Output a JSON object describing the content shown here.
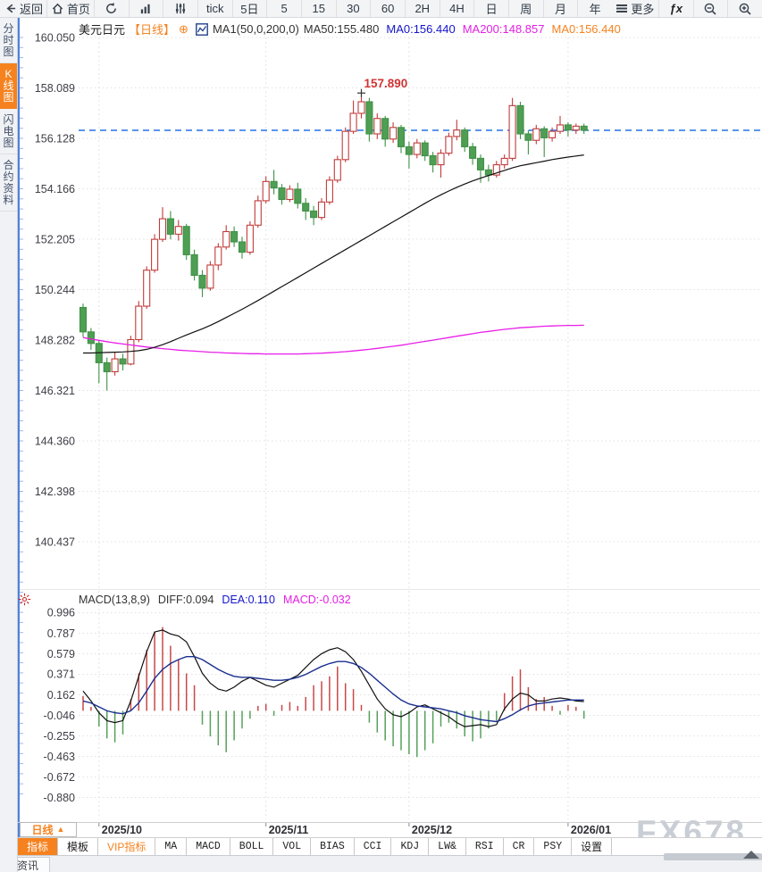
{
  "top_toolbar": {
    "back_label": "返回",
    "home_label": "首页",
    "periods": [
      "tick",
      "5日",
      "5",
      "15",
      "30",
      "60",
      "2H",
      "4H",
      "日",
      "周",
      "月",
      "年"
    ],
    "more_label": "更多",
    "fx_label": "ƒx"
  },
  "sidebar": {
    "items": [
      {
        "label": "分时图",
        "active": false
      },
      {
        "label": "K线图",
        "active": true
      },
      {
        "label": "闪电图",
        "active": false
      },
      {
        "label": "合约资料",
        "active": false
      }
    ]
  },
  "chart_header": {
    "symbol": "美元日元",
    "period": "【日线】",
    "add_icon": "⊕",
    "ma_settings": "MA1(50,0,200,0)",
    "ma50_label": "MA50:155.480",
    "ma0_blue_label": "MA0:156.440",
    "ma200_label": "MA200:148.857",
    "ma0_orange_label": "MA0:156.440"
  },
  "macd_header": {
    "title": "MACD(13,8,9)",
    "diff_label": "DIFF:0.094",
    "dea_label": "DEA:0.110",
    "macd_label": "MACD:-0.032"
  },
  "bottom": {
    "period_selector": "日线",
    "period_selector_arrow": "▲",
    "tabs": [
      {
        "label": "指标",
        "active": true,
        "mono": false,
        "vip": false
      },
      {
        "label": "模板",
        "active": false,
        "mono": false,
        "vip": false
      },
      {
        "label": "VIP指标",
        "active": false,
        "mono": false,
        "vip": true
      },
      {
        "label": "MA",
        "active": false,
        "mono": true,
        "vip": false
      },
      {
        "label": "MACD",
        "active": false,
        "mono": true,
        "vip": false
      },
      {
        "label": "BOLL",
        "active": false,
        "mono": true,
        "vip": false
      },
      {
        "label": "VOL",
        "active": false,
        "mono": true,
        "vip": false
      },
      {
        "label": "BIAS",
        "active": false,
        "mono": true,
        "vip": false
      },
      {
        "label": "CCI",
        "active": false,
        "mono": true,
        "vip": false
      },
      {
        "label": "KDJ",
        "active": false,
        "mono": true,
        "vip": false
      },
      {
        "label": "LW&",
        "active": false,
        "mono": true,
        "vip": false
      },
      {
        "label": "RSI",
        "active": false,
        "mono": true,
        "vip": false
      },
      {
        "label": "CR",
        "active": false,
        "mono": true,
        "vip": false
      },
      {
        "label": "PSY",
        "active": false,
        "mono": true,
        "vip": false
      },
      {
        "label": "设置",
        "active": false,
        "mono": false,
        "vip": false
      }
    ],
    "news_tab": "资讯",
    "watermark": "FX678"
  },
  "colors": {
    "up": "#c13b3b",
    "down": "#4e9e53",
    "down_stroke": "#3f9146",
    "hist_up": "#c84848",
    "hist_down": "#55a05a",
    "ma50": "#111111",
    "ma200": "#e81ee8",
    "diff": "#111111",
    "dea": "#1a2f8f",
    "accent": "#f5821f",
    "price_line": "#2474e8",
    "grid": "#e0e0e3",
    "axis_text": "#3d3d46",
    "annotation": "#cf3434",
    "axis_blue": "#4d82dd"
  },
  "chart_data": {
    "type": "candlestick",
    "title": "美元日元 日线 (USD/JPY daily with MA50/MA200 and MACD(13,8,9))",
    "price_axis_labels": [
      "160.050",
      "158.089",
      "156.128",
      "154.166",
      "152.205",
      "150.244",
      "148.282",
      "146.321",
      "144.360",
      "142.398",
      "140.437"
    ],
    "price_top_label_value": 160.05,
    "price_axis_step": 1.9613,
    "x_labels": [
      {
        "text": "2025/10",
        "candle_index": 2
      },
      {
        "text": "2025/11",
        "candle_index": 23
      },
      {
        "text": "2025/12",
        "candle_index": 41
      },
      {
        "text": "2026/01",
        "candle_index": 61
      }
    ],
    "current_price": 156.44,
    "peak_annotation": {
      "text": "157.890",
      "candle_index": 35,
      "price": 157.89
    },
    "candles": [
      [
        149.55,
        149.7,
        148.4,
        148.6
      ],
      [
        148.6,
        148.75,
        147.9,
        148.15
      ],
      [
        148.15,
        148.25,
        146.6,
        147.4
      ],
      [
        147.4,
        147.6,
        146.32,
        147.05
      ],
      [
        147.05,
        147.8,
        146.9,
        147.55
      ],
      [
        147.55,
        147.75,
        147.1,
        147.35
      ],
      [
        147.35,
        148.45,
        147.3,
        148.3
      ],
      [
        148.3,
        149.8,
        148.2,
        149.6
      ],
      [
        149.6,
        151.15,
        149.5,
        151.0
      ],
      [
        151.0,
        152.4,
        150.9,
        152.2
      ],
      [
        152.2,
        153.45,
        152.1,
        153.0
      ],
      [
        153.0,
        153.3,
        152.2,
        152.4
      ],
      [
        152.4,
        152.95,
        152.15,
        152.7
      ],
      [
        152.7,
        152.8,
        151.4,
        151.6
      ],
      [
        151.6,
        151.8,
        150.6,
        150.8
      ],
      [
        150.8,
        151.0,
        149.95,
        150.3
      ],
      [
        150.3,
        151.35,
        150.2,
        151.2
      ],
      [
        151.2,
        152.05,
        151.0,
        151.9
      ],
      [
        151.9,
        152.75,
        151.8,
        152.5
      ],
      [
        152.5,
        152.7,
        151.9,
        152.1
      ],
      [
        152.1,
        152.3,
        151.45,
        151.7
      ],
      [
        151.7,
        152.9,
        151.6,
        152.75
      ],
      [
        152.75,
        153.9,
        152.65,
        153.7
      ],
      [
        153.7,
        154.65,
        153.6,
        154.45
      ],
      [
        154.45,
        154.9,
        153.95,
        154.2
      ],
      [
        154.2,
        154.35,
        153.55,
        153.75
      ],
      [
        153.75,
        154.3,
        153.65,
        154.15
      ],
      [
        154.15,
        154.4,
        153.4,
        153.6
      ],
      [
        153.6,
        153.8,
        152.95,
        153.3
      ],
      [
        153.3,
        153.5,
        152.75,
        153.05
      ],
      [
        153.05,
        153.8,
        152.95,
        153.65
      ],
      [
        153.65,
        154.65,
        153.55,
        154.5
      ],
      [
        154.5,
        155.45,
        154.4,
        155.3
      ],
      [
        155.3,
        156.55,
        155.2,
        156.4
      ],
      [
        156.4,
        157.6,
        156.3,
        157.1
      ],
      [
        157.1,
        157.89,
        156.9,
        157.55
      ],
      [
        157.55,
        157.7,
        156.0,
        156.3
      ],
      [
        156.3,
        157.1,
        156.1,
        156.9
      ],
      [
        156.9,
        157.0,
        155.8,
        156.1
      ],
      [
        156.1,
        156.75,
        155.95,
        156.55
      ],
      [
        156.55,
        156.65,
        155.55,
        155.8
      ],
      [
        155.8,
        156.0,
        154.95,
        155.5
      ],
      [
        155.5,
        156.1,
        155.35,
        155.95
      ],
      [
        155.95,
        156.05,
        155.25,
        155.45
      ],
      [
        155.45,
        155.6,
        154.8,
        155.1
      ],
      [
        155.1,
        155.7,
        154.6,
        155.55
      ],
      [
        155.55,
        156.35,
        155.45,
        156.2
      ],
      [
        156.2,
        156.85,
        156.05,
        156.45
      ],
      [
        156.45,
        156.55,
        155.6,
        155.8
      ],
      [
        155.8,
        155.95,
        155.1,
        155.35
      ],
      [
        155.35,
        155.5,
        154.4,
        154.9
      ],
      [
        154.9,
        155.1,
        154.45,
        154.7
      ],
      [
        154.7,
        155.25,
        154.6,
        155.1
      ],
      [
        155.1,
        155.5,
        154.95,
        155.35
      ],
      [
        155.35,
        157.7,
        155.25,
        157.4
      ],
      [
        157.4,
        157.55,
        156.1,
        156.3
      ],
      [
        156.3,
        156.45,
        155.5,
        156.05
      ],
      [
        156.05,
        156.65,
        155.9,
        156.5
      ],
      [
        156.5,
        156.6,
        155.4,
        156.15
      ],
      [
        156.15,
        156.55,
        156.0,
        156.4
      ],
      [
        156.4,
        157.0,
        156.3,
        156.65
      ],
      [
        156.65,
        156.75,
        156.2,
        156.45
      ],
      [
        156.45,
        156.7,
        156.3,
        156.6
      ],
      [
        156.6,
        156.7,
        156.3,
        156.44
      ]
    ],
    "ma50": [
      147.78,
      147.78,
      147.79,
      147.8,
      147.81,
      147.82,
      147.84,
      147.87,
      147.92,
      148.0,
      148.1,
      148.22,
      148.35,
      148.48,
      148.6,
      148.72,
      148.85,
      149.0,
      149.16,
      149.32,
      149.48,
      149.65,
      149.82,
      150.0,
      150.18,
      150.36,
      150.54,
      150.72,
      150.9,
      151.08,
      151.26,
      151.44,
      151.62,
      151.8,
      151.98,
      152.16,
      152.34,
      152.52,
      152.7,
      152.88,
      153.06,
      153.24,
      153.42,
      153.6,
      153.77,
      153.93,
      154.08,
      154.22,
      154.35,
      154.47,
      154.58,
      154.68,
      154.78,
      154.88,
      154.98,
      155.06,
      155.12,
      155.18,
      155.24,
      155.3,
      155.35,
      155.4,
      155.44,
      155.48
    ],
    "ma200": [
      148.38,
      148.32,
      148.27,
      148.22,
      148.17,
      148.13,
      148.09,
      148.05,
      148.01,
      147.98,
      147.95,
      147.92,
      147.89,
      147.87,
      147.85,
      147.83,
      147.81,
      147.8,
      147.78,
      147.77,
      147.76,
      147.75,
      147.75,
      147.74,
      147.74,
      147.74,
      147.74,
      147.74,
      147.75,
      147.76,
      147.77,
      147.79,
      147.81,
      147.83,
      147.86,
      147.89,
      147.92,
      147.96,
      148.0,
      148.04,
      148.08,
      148.13,
      148.18,
      148.23,
      148.28,
      148.33,
      148.38,
      148.43,
      148.48,
      148.53,
      148.58,
      148.62,
      148.66,
      148.7,
      148.73,
      148.76,
      148.78,
      148.8,
      148.82,
      148.83,
      148.84,
      148.85,
      148.85,
      148.86
    ],
    "macd": {
      "params": "(13,8,9)",
      "axis_labels": [
        "0.996",
        "0.787",
        "0.579",
        "0.371",
        "0.162",
        "-0.046",
        "-0.255",
        "-0.463",
        "-0.672",
        "-0.880"
      ],
      "hist": [
        0.15,
        0.04,
        -0.16,
        -0.28,
        -0.32,
        -0.24,
        0.12,
        0.38,
        0.62,
        0.8,
        0.85,
        0.66,
        0.52,
        0.38,
        0.26,
        -0.14,
        -0.26,
        -0.35,
        -0.42,
        -0.3,
        -0.18,
        -0.08,
        0.05,
        0.07,
        -0.05,
        0.06,
        0.09,
        0.05,
        0.14,
        0.26,
        0.3,
        0.35,
        0.45,
        0.28,
        0.22,
        0.06,
        -0.12,
        -0.22,
        -0.3,
        -0.36,
        -0.4,
        -0.44,
        -0.47,
        -0.4,
        -0.33,
        -0.16,
        -0.12,
        -0.18,
        -0.26,
        -0.31,
        -0.28,
        -0.18,
        -0.1,
        0.18,
        0.35,
        0.42,
        0.24,
        0.12,
        0.14,
        0.05,
        -0.04,
        0.06,
        0.04,
        -0.08
      ],
      "diff": [
        0.2,
        0.1,
        -0.02,
        -0.1,
        -0.12,
        -0.1,
        0.1,
        0.35,
        0.6,
        0.8,
        0.82,
        0.78,
        0.76,
        0.7,
        0.55,
        0.38,
        0.28,
        0.22,
        0.2,
        0.24,
        0.3,
        0.34,
        0.3,
        0.26,
        0.24,
        0.28,
        0.32,
        0.36,
        0.44,
        0.52,
        0.58,
        0.62,
        0.64,
        0.6,
        0.52,
        0.4,
        0.26,
        0.12,
        0.02,
        -0.04,
        -0.06,
        -0.02,
        0.04,
        0.06,
        0.02,
        -0.02,
        -0.06,
        -0.12,
        -0.16,
        -0.15,
        -0.14,
        -0.16,
        -0.14,
        0.02,
        0.12,
        0.18,
        0.16,
        0.1,
        0.1,
        0.12,
        0.13,
        0.12,
        0.1,
        0.094
      ],
      "dea": [
        0.1,
        0.08,
        0.04,
        0.0,
        -0.02,
        -0.03,
        0.0,
        0.08,
        0.2,
        0.33,
        0.42,
        0.48,
        0.52,
        0.55,
        0.55,
        0.52,
        0.47,
        0.42,
        0.38,
        0.35,
        0.34,
        0.34,
        0.33,
        0.32,
        0.31,
        0.31,
        0.32,
        0.34,
        0.37,
        0.41,
        0.45,
        0.48,
        0.5,
        0.5,
        0.48,
        0.44,
        0.38,
        0.31,
        0.24,
        0.17,
        0.11,
        0.07,
        0.05,
        0.04,
        0.03,
        0.02,
        0.0,
        -0.02,
        -0.05,
        -0.07,
        -0.09,
        -0.1,
        -0.11,
        -0.08,
        -0.04,
        0.01,
        0.05,
        0.07,
        0.08,
        0.09,
        0.1,
        0.11,
        0.11,
        0.11
      ]
    }
  }
}
